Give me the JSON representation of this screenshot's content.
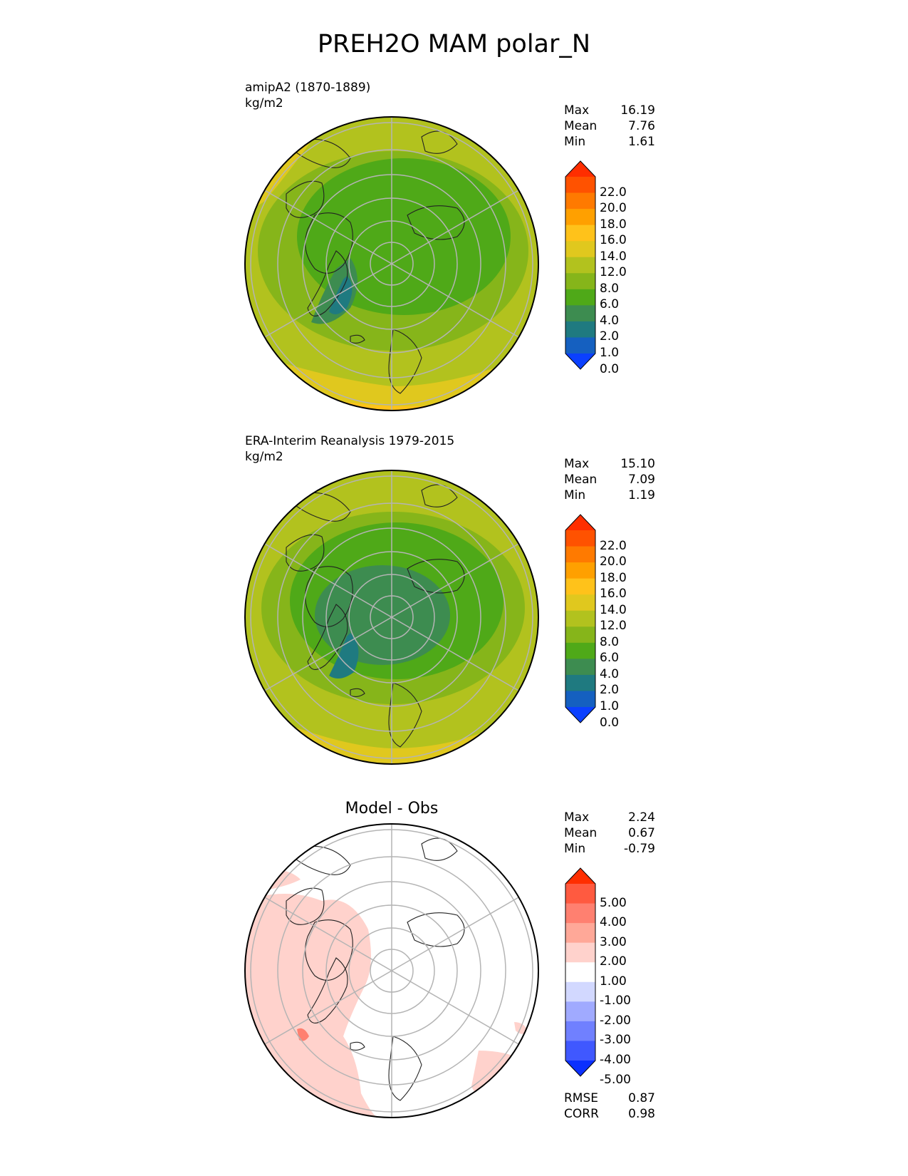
{
  "title": "PREH2O MAM polar_N",
  "panels": [
    {
      "name": "model",
      "label": "amipA2 (1870-1889)",
      "units": "kg/m2",
      "stats": [
        {
          "label": "Max",
          "value": "16.19"
        },
        {
          "label": "Mean",
          "value": "7.76"
        },
        {
          "label": "Min",
          "value": "1.61"
        }
      ],
      "colorbar": {
        "ticks": [
          "22.0",
          "20.0",
          "18.0",
          "16.0",
          "14.0",
          "12.0",
          "8.0",
          "6.0",
          "4.0",
          "2.0",
          "1.0",
          "0.0"
        ],
        "colors": [
          "#ff2e00",
          "#ff5200",
          "#ff7a00",
          "#ffa000",
          "#ffc21a",
          "#e0c81e",
          "#b2c21e",
          "#86b51a",
          "#4fa918",
          "#3d8c50",
          "#1f7a80",
          "#1560c0",
          "#0b40ff"
        ]
      }
    },
    {
      "name": "obs",
      "label": "ERA-Interim Reanalysis 1979-2015",
      "units": "kg/m2",
      "stats": [
        {
          "label": "Max",
          "value": "15.10"
        },
        {
          "label": "Mean",
          "value": "7.09"
        },
        {
          "label": "Min",
          "value": "1.19"
        }
      ],
      "colorbar": {
        "ticks": [
          "22.0",
          "20.0",
          "18.0",
          "16.0",
          "14.0",
          "12.0",
          "8.0",
          "6.0",
          "4.0",
          "2.0",
          "1.0",
          "0.0"
        ],
        "colors": [
          "#ff2e00",
          "#ff5200",
          "#ff7a00",
          "#ffa000",
          "#ffc21a",
          "#e0c81e",
          "#b2c21e",
          "#86b51a",
          "#4fa918",
          "#3d8c50",
          "#1f7a80",
          "#1560c0",
          "#0b40ff"
        ]
      }
    },
    {
      "name": "diff",
      "subtitle": "Model - Obs",
      "stats": [
        {
          "label": "Max",
          "value": "2.24"
        },
        {
          "label": "Mean",
          "value": "0.67"
        },
        {
          "label": "Min",
          "value": "-0.79"
        }
      ],
      "colorbar": {
        "ticks": [
          "5.00",
          "4.00",
          "3.00",
          "2.00",
          "1.00",
          "-1.00",
          "-2.00",
          "-3.00",
          "-4.00",
          "-5.00"
        ],
        "colors": [
          "#ff2e00",
          "#ff5a40",
          "#ff8070",
          "#ffa898",
          "#ffd2cc",
          "#ffffff",
          "#d2d8ff",
          "#a0aaff",
          "#7080ff",
          "#4058ff",
          "#0b30ff"
        ]
      },
      "metrics": [
        {
          "label": "RMSE",
          "value": "0.87"
        },
        {
          "label": "CORR",
          "value": "0.98"
        }
      ]
    }
  ]
}
